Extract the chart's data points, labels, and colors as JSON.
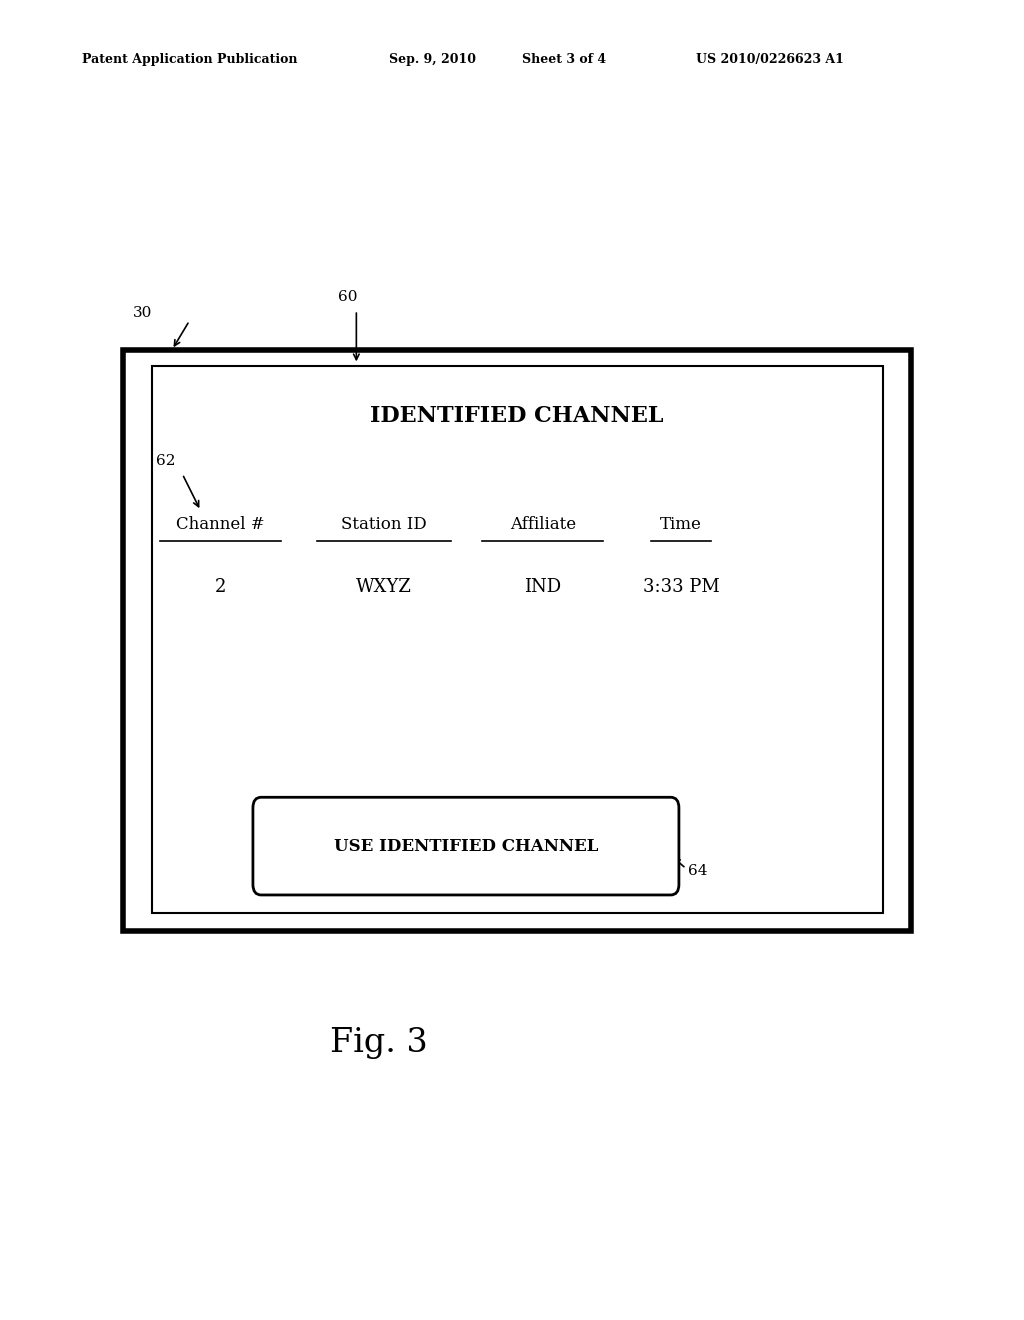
{
  "bg_color": "#ffffff",
  "header_text": "Patent Application Publication",
  "header_date": "Sep. 9, 2010",
  "header_sheet": "Sheet 3 of 4",
  "header_patent": "US 2010/0226623 A1",
  "label_30": "30",
  "label_60": "60",
  "label_62": "62",
  "label_64": "64",
  "title_text": "IDENTIFIED CHANNEL",
  "col_headers": [
    "Channel #",
    "Station ID",
    "Affiliate",
    "Time"
  ],
  "col_values": [
    "2",
    "WXYZ",
    "IND",
    "3:33 PM"
  ],
  "button_text": "USE IDENTIFIED CHANNEL",
  "fig_label": "Fig. 3"
}
